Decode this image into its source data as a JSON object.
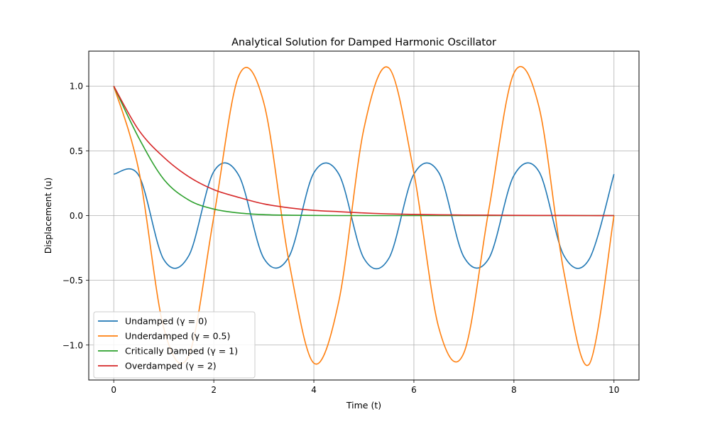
{
  "chart_data": {
    "type": "line",
    "title": "Analytical Solution for Damped Harmonic Oscillator",
    "xlabel": "Time (t)",
    "ylabel": "Displacement (u)",
    "xlim": [
      -0.5,
      10.5
    ],
    "ylim": [
      -1.27,
      1.27
    ],
    "x_ticks": [
      0,
      2,
      4,
      6,
      8,
      10
    ],
    "x_tick_labels": [
      "0",
      "2",
      "4",
      "6",
      "8",
      "10"
    ],
    "y_ticks": [
      -1.0,
      -0.5,
      0.0,
      0.5,
      1.0
    ],
    "y_tick_labels": [
      "−1.0",
      "−0.5",
      "0.0",
      "0.5",
      "1.0"
    ],
    "grid": true,
    "legend_position": "lower-left",
    "x": [
      0,
      0.5,
      1,
      1.5,
      2,
      2.5,
      3,
      3.5,
      4,
      4.5,
      5,
      5.5,
      6,
      6.5,
      7,
      7.5,
      8,
      8.5,
      9,
      9.5,
      10
    ],
    "series": [
      {
        "name": "Undamped (γ = 0)",
        "color": "#1f77b4",
        "values": [
          0.32,
          0.31,
          -0.34,
          -0.31,
          0.34,
          0.31,
          -0.33,
          -0.32,
          0.33,
          0.32,
          -0.33,
          -0.33,
          0.32,
          0.33,
          -0.32,
          -0.33,
          0.31,
          0.34,
          -0.31,
          -0.34,
          0.32
        ]
      },
      {
        "name": "Underdamped (γ = 0.5)",
        "color": "#ff7f0e",
        "values": [
          1.0,
          0.35,
          -0.87,
          -1.08,
          -0.01,
          1.08,
          0.87,
          -0.35,
          -1.14,
          -0.66,
          0.67,
          1.14,
          0.33,
          -0.87,
          -1.06,
          0.05,
          1.1,
          0.84,
          -0.44,
          -1.15,
          0.0
        ]
      },
      {
        "name": "Critically Damped (γ = 1)",
        "color": "#2ca02c",
        "values": [
          1.0,
          0.6,
          0.28,
          0.12,
          0.05,
          0.02,
          0.007,
          0.003,
          0.001,
          0.0,
          0.0,
          0.0,
          0.0,
          0.0,
          0.0,
          0.0,
          0.0,
          0.0,
          0.0,
          0.0,
          0.0
        ]
      },
      {
        "name": "Overdamped (γ = 2)",
        "color": "#d62728",
        "values": [
          1.0,
          0.66,
          0.45,
          0.3,
          0.2,
          0.14,
          0.09,
          0.06,
          0.04,
          0.03,
          0.02,
          0.013,
          0.009,
          0.006,
          0.004,
          0.003,
          0.002,
          0.001,
          0.001,
          0.0,
          0.0
        ]
      }
    ]
  }
}
